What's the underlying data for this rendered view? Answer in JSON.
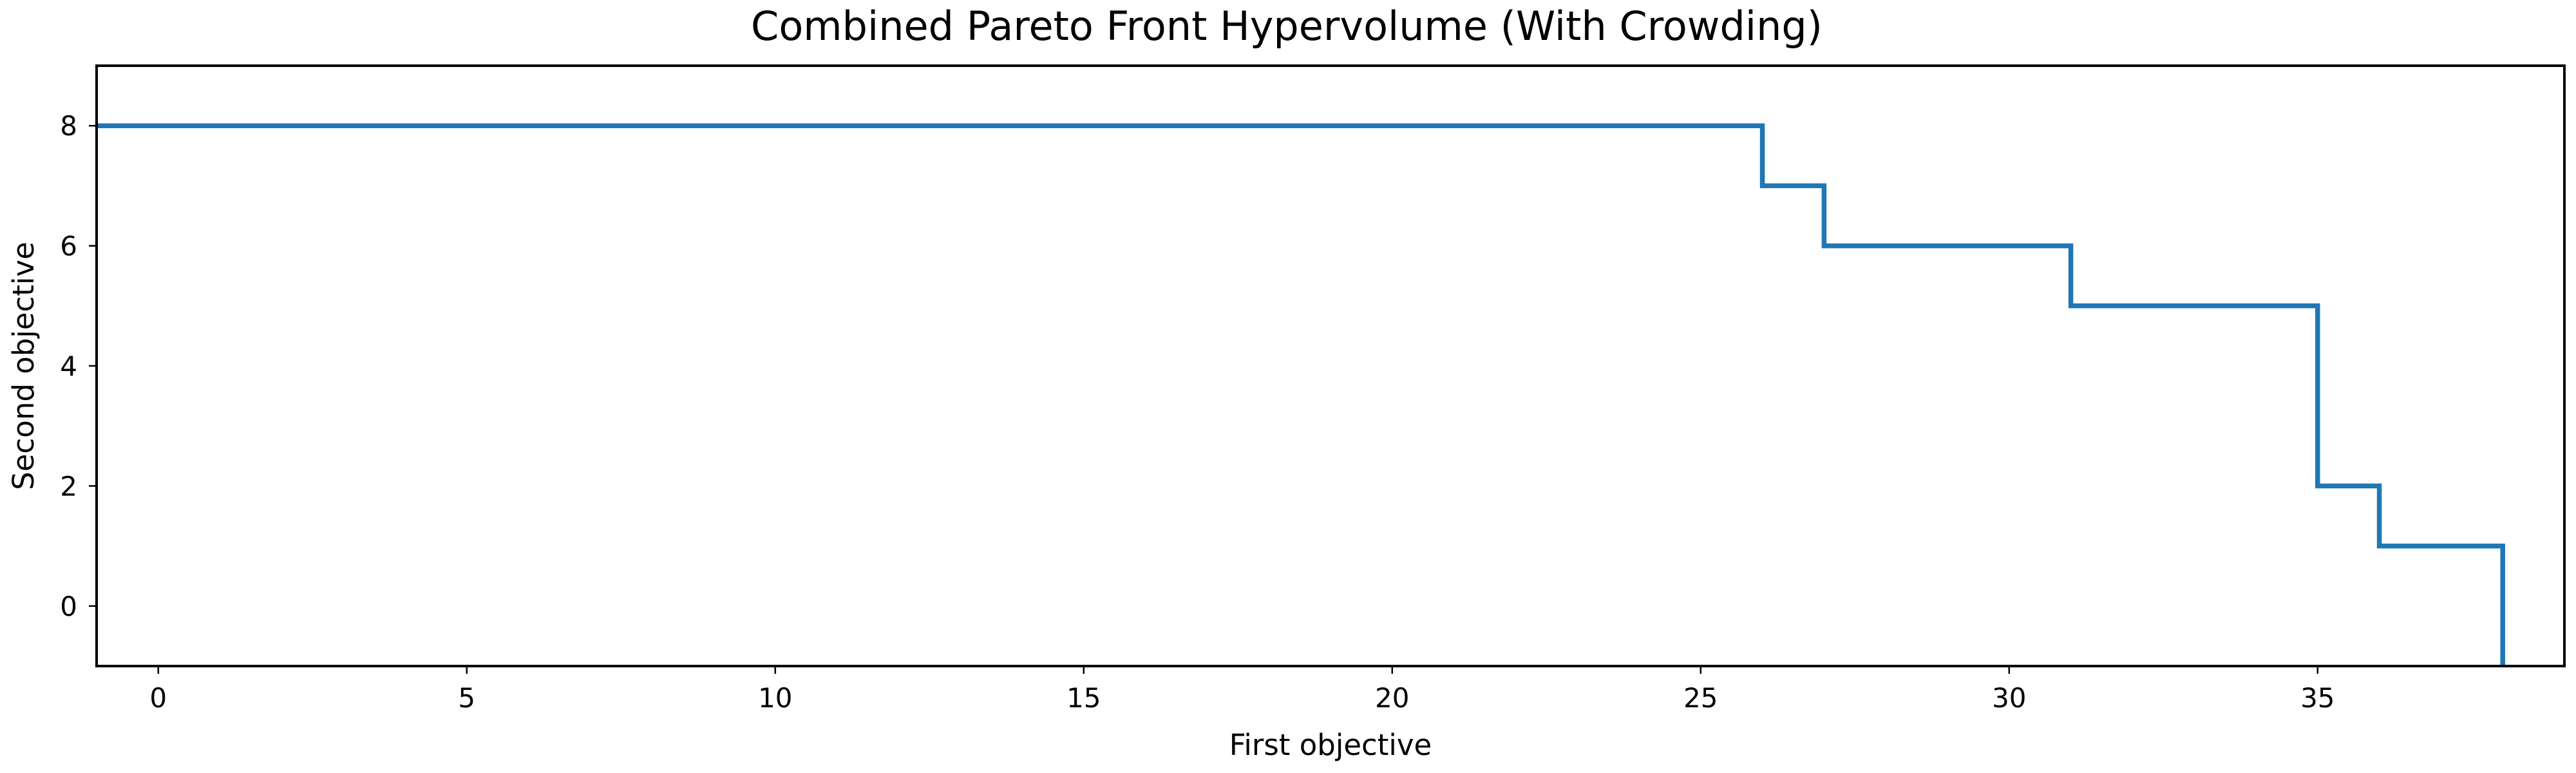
{
  "chart_data": {
    "type": "line",
    "title": "Combined Pareto Front Hypervolume (With Crowding)",
    "xlabel": "First objective",
    "ylabel": "Second objective",
    "xlim": [
      -1,
      39
    ],
    "ylim": [
      -1,
      9
    ],
    "xticks": [
      0,
      5,
      10,
      15,
      20,
      25,
      30,
      35
    ],
    "yticks": [
      0,
      2,
      4,
      6,
      8
    ],
    "grid": false,
    "legend": "none",
    "step": "post",
    "series": [
      {
        "color": "#1f77b4",
        "x": [
          -1,
          26,
          26,
          27,
          27,
          31,
          31,
          35,
          35,
          36,
          36,
          38,
          38
        ],
        "y": [
          8,
          8,
          7,
          7,
          6,
          6,
          5,
          5,
          2,
          2,
          1,
          1,
          -1
        ]
      }
    ]
  }
}
